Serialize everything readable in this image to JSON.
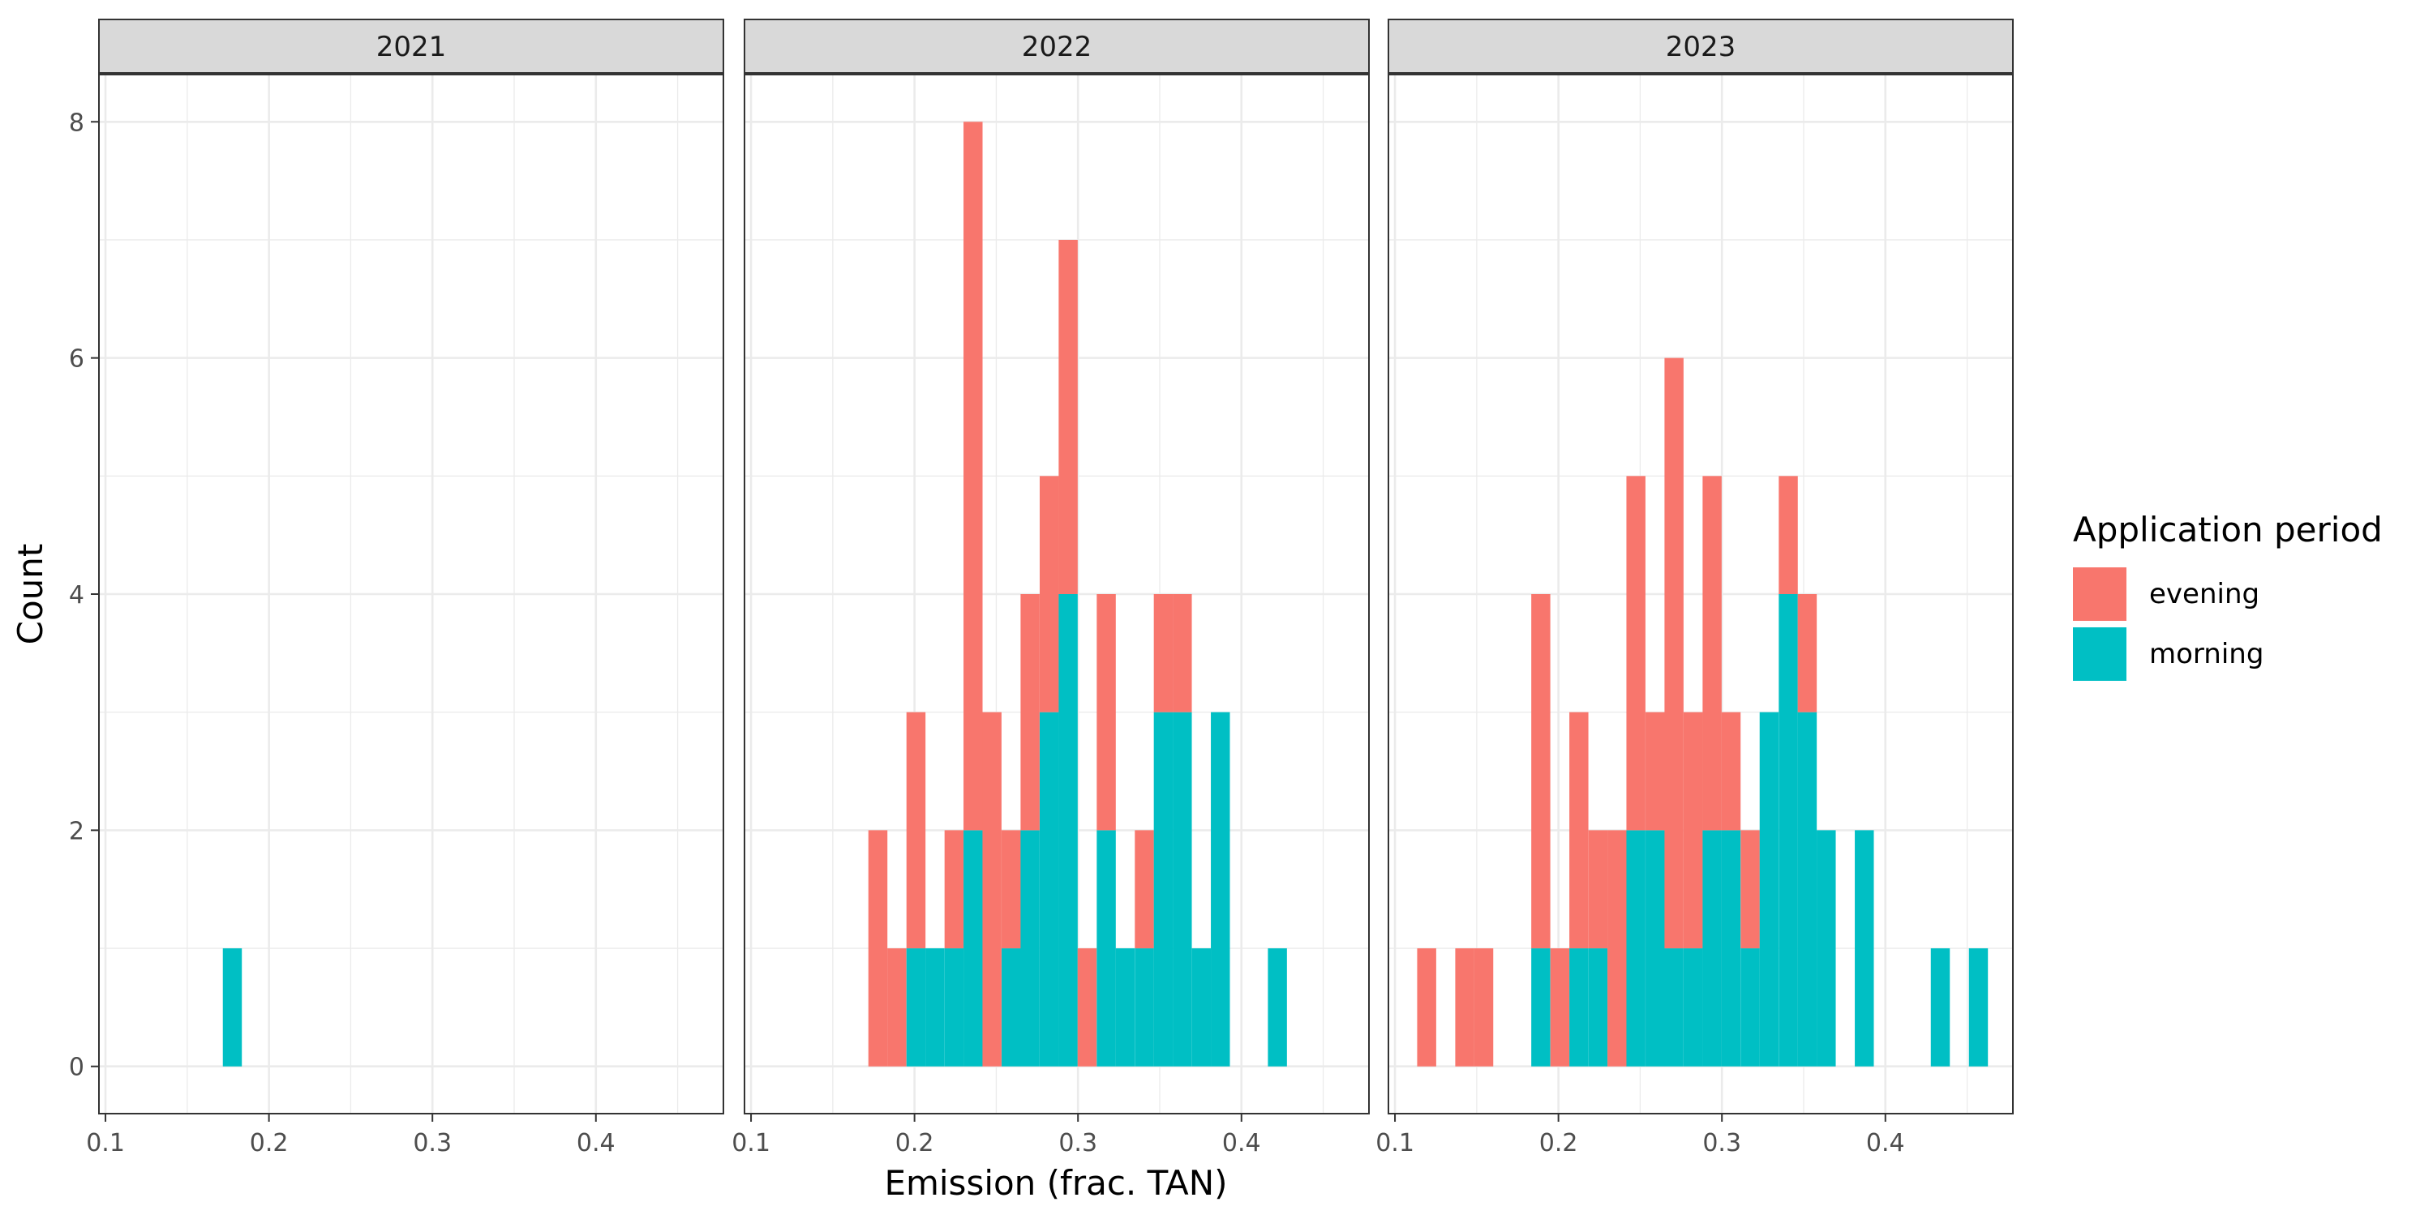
{
  "chart_data": {
    "type": "bar",
    "xlabel": "Emission (frac. TAN)",
    "ylabel": "Count",
    "xlim": [
      0.096,
      0.478
    ],
    "ylim": [
      -0.4,
      8.4
    ],
    "x_ticks": [
      0.1,
      0.2,
      0.3,
      0.4
    ],
    "y_ticks": [
      0,
      2,
      4,
      6,
      8
    ],
    "bin_width": 0.01164,
    "grid": true,
    "legend": {
      "title": "Application period",
      "position": "right",
      "entries": [
        {
          "name": "evening",
          "color": "#F8766D"
        },
        {
          "name": "morning",
          "color": "#00BFC4"
        }
      ]
    },
    "panels": [
      {
        "label": "2021",
        "bins": [
          {
            "x": 0.1776,
            "evening": 0,
            "morning": 1
          }
        ]
      },
      {
        "label": "2022",
        "bins": [
          {
            "x": 0.1776,
            "evening": 2,
            "morning": 0
          },
          {
            "x": 0.1892,
            "evening": 1,
            "morning": 0
          },
          {
            "x": 0.2009,
            "evening": 2,
            "morning": 1
          },
          {
            "x": 0.2125,
            "evening": 0,
            "morning": 1
          },
          {
            "x": 0.2242,
            "evening": 1,
            "morning": 1
          },
          {
            "x": 0.2358,
            "evening": 6,
            "morning": 2
          },
          {
            "x": 0.2474,
            "evening": 3,
            "morning": 0
          },
          {
            "x": 0.2591,
            "evening": 1,
            "morning": 1
          },
          {
            "x": 0.2707,
            "evening": 2,
            "morning": 2
          },
          {
            "x": 0.2824,
            "evening": 2,
            "morning": 3
          },
          {
            "x": 0.294,
            "evening": 3,
            "morning": 4
          },
          {
            "x": 0.3056,
            "evening": 1,
            "morning": 0
          },
          {
            "x": 0.3173,
            "evening": 2,
            "morning": 2
          },
          {
            "x": 0.3289,
            "evening": 0,
            "morning": 1
          },
          {
            "x": 0.3406,
            "evening": 1,
            "morning": 1
          },
          {
            "x": 0.3522,
            "evening": 1,
            "morning": 3
          },
          {
            "x": 0.3638,
            "evening": 1,
            "morning": 3
          },
          {
            "x": 0.3755,
            "evening": 0,
            "morning": 1
          },
          {
            "x": 0.3871,
            "evening": 0,
            "morning": 3
          },
          {
            "x": 0.422,
            "evening": 0,
            "morning": 1
          }
        ]
      },
      {
        "label": "2023",
        "bins": [
          {
            "x": 0.1194,
            "evening": 1,
            "morning": 0
          },
          {
            "x": 0.1427,
            "evening": 1,
            "morning": 0
          },
          {
            "x": 0.1543,
            "evening": 1,
            "morning": 0
          },
          {
            "x": 0.1892,
            "evening": 3,
            "morning": 1
          },
          {
            "x": 0.2009,
            "evening": 1,
            "morning": 0
          },
          {
            "x": 0.2125,
            "evening": 2,
            "morning": 1
          },
          {
            "x": 0.2242,
            "evening": 1,
            "morning": 1
          },
          {
            "x": 0.2358,
            "evening": 2,
            "morning": 0
          },
          {
            "x": 0.2474,
            "evening": 3,
            "morning": 2
          },
          {
            "x": 0.2591,
            "evening": 1,
            "morning": 2
          },
          {
            "x": 0.2707,
            "evening": 5,
            "morning": 1
          },
          {
            "x": 0.2824,
            "evening": 2,
            "morning": 1
          },
          {
            "x": 0.294,
            "evening": 3,
            "morning": 2
          },
          {
            "x": 0.3056,
            "evening": 1,
            "morning": 2
          },
          {
            "x": 0.3173,
            "evening": 1,
            "morning": 1
          },
          {
            "x": 0.3289,
            "evening": 0,
            "morning": 3
          },
          {
            "x": 0.3406,
            "evening": 1,
            "morning": 4
          },
          {
            "x": 0.3522,
            "evening": 1,
            "morning": 3
          },
          {
            "x": 0.3638,
            "evening": 0,
            "morning": 2
          },
          {
            "x": 0.3871,
            "evening": 0,
            "morning": 2
          },
          {
            "x": 0.4336,
            "evening": 0,
            "morning": 1
          },
          {
            "x": 0.4569,
            "evening": 0,
            "morning": 1
          }
        ]
      }
    ]
  }
}
